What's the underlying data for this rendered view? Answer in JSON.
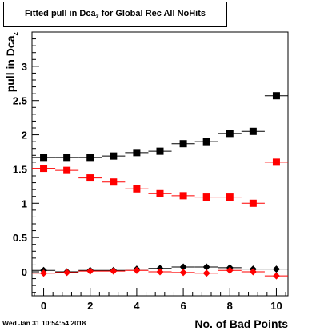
{
  "title": {
    "main": "Fitted pull in Dca",
    "subscript": "z",
    "rest": " for Global Rec All NoHits"
  },
  "timestamp": "Wed Jan 31 10:54:54 2018",
  "chart_data": {
    "type": "scatter",
    "title": "Fitted pull in Dca_z for Global Rec All NoHits",
    "xlabel": "No. of Bad Points",
    "ylabel": "pull in Dca_z",
    "ylabel_main": "pull in Dca",
    "ylabel_sub": "z",
    "xlim": [
      -0.5,
      10.5
    ],
    "ylim": [
      -0.35,
      3.5
    ],
    "x_ticks": [
      0,
      2,
      4,
      6,
      8,
      10
    ],
    "y_ticks": [
      0,
      0.5,
      1,
      1.5,
      2,
      2.5,
      3
    ],
    "x_tick_labels": [
      "0",
      "2",
      "4",
      "6",
      "8",
      "10"
    ],
    "y_tick_labels": [
      "0",
      "0.5",
      "1",
      "1.5",
      "2",
      "2.5",
      "3"
    ],
    "grid": false,
    "series": [
      {
        "marker": "square",
        "color": "#000000",
        "x": [
          0,
          1,
          2,
          3,
          4,
          5,
          6,
          7,
          8,
          9,
          10
        ],
        "y": [
          1.67,
          1.67,
          1.67,
          1.69,
          1.74,
          1.76,
          1.87,
          1.9,
          2.02,
          2.05,
          2.57
        ]
      },
      {
        "marker": "square",
        "color": "#ff0000",
        "x": [
          0,
          1,
          2,
          3,
          4,
          5,
          6,
          7,
          8,
          9,
          10
        ],
        "y": [
          1.51,
          1.48,
          1.37,
          1.31,
          1.21,
          1.14,
          1.11,
          1.09,
          1.09,
          1.0,
          1.6
        ]
      },
      {
        "marker": "diamond",
        "color": "#000000",
        "x": [
          0,
          1,
          2,
          3,
          4,
          5,
          6,
          7,
          8,
          9,
          10
        ],
        "y": [
          0.02,
          0.0,
          0.02,
          0.02,
          0.04,
          0.05,
          0.07,
          0.07,
          0.06,
          0.04,
          0.04
        ]
      },
      {
        "marker": "diamond",
        "color": "#ff0000",
        "x": [
          0,
          1,
          2,
          3,
          4,
          5,
          6,
          7,
          8,
          9,
          10
        ],
        "y": [
          -0.02,
          -0.01,
          0.01,
          0.01,
          0.02,
          0.0,
          -0.01,
          -0.02,
          0.02,
          0.0,
          -0.06
        ]
      }
    ]
  }
}
